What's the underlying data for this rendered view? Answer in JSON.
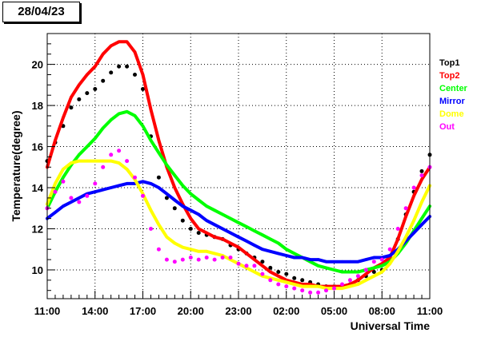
{
  "header": {
    "date": "28/04/23"
  },
  "chart_data": {
    "type": "scatter",
    "xlabel": "Universal Time",
    "ylabel": "Temperature(degree)",
    "xlim": [
      0,
      24
    ],
    "ylim": [
      8.6,
      21.5
    ],
    "x_ticks": [
      {
        "x": 0,
        "label": "11:00"
      },
      {
        "x": 3,
        "label": "14:00"
      },
      {
        "x": 6,
        "label": "17:00"
      },
      {
        "x": 9,
        "label": "20:00"
      },
      {
        "x": 12,
        "label": "23:00"
      },
      {
        "x": 15,
        "label": "02:00"
      },
      {
        "x": 18,
        "label": "05:00"
      },
      {
        "x": 21,
        "label": "08:00"
      },
      {
        "x": 24,
        "label": "11:00"
      }
    ],
    "y_ticks": [
      {
        "y": 10,
        "label": "10"
      },
      {
        "y": 12,
        "label": "12"
      },
      {
        "y": 14,
        "label": "14"
      },
      {
        "y": 16,
        "label": "16"
      },
      {
        "y": 18,
        "label": "18"
      },
      {
        "y": 20,
        "label": "20"
      }
    ],
    "grid": true,
    "legend_position": "right",
    "series": [
      {
        "name": "Top1",
        "color": "#000000",
        "marker": "dot",
        "x": [
          0,
          0.5,
          1,
          1.5,
          2,
          2.5,
          3,
          3.5,
          4,
          4.5,
          5,
          5.5,
          6,
          6.5,
          7,
          7.5,
          8,
          8.5,
          9,
          9.5,
          10,
          10.5,
          11,
          11.5,
          12,
          12.5,
          13,
          13.5,
          14,
          14.5,
          15,
          15.5,
          16,
          16.5,
          17,
          17.5,
          18,
          18.5,
          19,
          19.5,
          20,
          20.5,
          21,
          21.5,
          22,
          22.5,
          23,
          23.5,
          24
        ],
        "y": [
          15.3,
          16.2,
          17.0,
          17.9,
          18.3,
          18.6,
          18.8,
          19.2,
          19.6,
          19.9,
          19.9,
          19.5,
          18.8,
          16.5,
          14.5,
          13.5,
          13.0,
          12.4,
          12.0,
          11.8,
          11.7,
          11.6,
          11.5,
          11.2,
          11.0,
          10.8,
          10.6,
          10.4,
          10.1,
          9.9,
          9.8,
          9.6,
          9.5,
          9.4,
          9.3,
          9.2,
          9.2,
          9.2,
          9.3,
          9.5,
          9.7,
          9.9,
          10.0,
          10.5,
          11.5,
          12.7,
          13.8,
          14.8,
          15.6
        ]
      },
      {
        "name": "Top2",
        "color": "#ff0000",
        "marker": "line",
        "x": [
          0,
          0.5,
          1,
          1.5,
          2,
          2.5,
          3,
          3.5,
          4,
          4.5,
          5,
          5.5,
          6,
          6.5,
          7,
          7.5,
          8,
          8.5,
          9,
          9.5,
          10,
          10.5,
          11,
          11.5,
          12,
          12.5,
          13,
          13.5,
          14,
          14.5,
          15,
          15.5,
          16,
          16.5,
          17,
          17.5,
          18,
          18.5,
          19,
          19.5,
          20,
          20.5,
          21,
          21.5,
          22,
          22.5,
          23,
          23.5,
          24
        ],
        "y": [
          15.0,
          16.3,
          17.4,
          18.4,
          19.0,
          19.5,
          19.9,
          20.5,
          20.9,
          21.1,
          21.1,
          20.6,
          19.5,
          17.8,
          16.3,
          15.0,
          14.0,
          13.2,
          12.5,
          12.0,
          11.8,
          11.6,
          11.5,
          11.3,
          11.1,
          10.8,
          10.5,
          10.2,
          9.9,
          9.7,
          9.5,
          9.4,
          9.3,
          9.3,
          9.2,
          9.2,
          9.2,
          9.2,
          9.3,
          9.5,
          9.8,
          10.1,
          10.3,
          10.6,
          11.5,
          12.6,
          13.6,
          14.4,
          15.0
        ]
      },
      {
        "name": "Center",
        "color": "#00ff00",
        "marker": "line",
        "x": [
          0,
          0.5,
          1,
          1.5,
          2,
          2.5,
          3,
          3.5,
          4,
          4.5,
          5,
          5.5,
          6,
          6.5,
          7,
          7.5,
          8,
          8.5,
          9,
          9.5,
          10,
          10.5,
          11,
          11.5,
          12,
          12.5,
          13,
          13.5,
          14,
          14.5,
          15,
          15.5,
          16,
          16.5,
          17,
          17.5,
          18,
          18.5,
          19,
          19.5,
          20,
          20.5,
          21,
          21.5,
          22,
          22.5,
          23,
          23.5,
          24
        ],
        "y": [
          13.0,
          13.8,
          14.5,
          15.1,
          15.6,
          16.0,
          16.4,
          16.9,
          17.3,
          17.6,
          17.7,
          17.5,
          17.0,
          16.3,
          15.7,
          15.1,
          14.6,
          14.1,
          13.7,
          13.4,
          13.1,
          12.9,
          12.7,
          12.5,
          12.3,
          12.1,
          11.9,
          11.7,
          11.5,
          11.3,
          11.0,
          10.8,
          10.6,
          10.4,
          10.2,
          10.1,
          10.0,
          9.9,
          9.9,
          9.9,
          10.0,
          10.1,
          10.2,
          10.4,
          10.8,
          11.3,
          11.9,
          12.5,
          13.1
        ]
      },
      {
        "name": "Mirror",
        "color": "#0000ff",
        "marker": "line",
        "x": [
          0,
          0.5,
          1,
          1.5,
          2,
          2.5,
          3,
          3.5,
          4,
          4.5,
          5,
          5.5,
          6,
          6.5,
          7,
          7.5,
          8,
          8.5,
          9,
          9.5,
          10,
          10.5,
          11,
          11.5,
          12,
          12.5,
          13,
          13.5,
          14,
          14.5,
          15,
          15.5,
          16,
          16.5,
          17,
          17.5,
          18,
          18.5,
          19,
          19.5,
          20,
          20.5,
          21,
          21.5,
          22,
          22.5,
          23,
          23.5,
          24
        ],
        "y": [
          12.5,
          12.8,
          13.1,
          13.3,
          13.5,
          13.7,
          13.8,
          13.9,
          14.0,
          14.1,
          14.2,
          14.2,
          14.3,
          14.2,
          14.0,
          13.7,
          13.4,
          13.1,
          12.9,
          12.7,
          12.4,
          12.2,
          12.0,
          11.8,
          11.6,
          11.4,
          11.2,
          11.0,
          10.9,
          10.8,
          10.7,
          10.6,
          10.6,
          10.5,
          10.5,
          10.4,
          10.4,
          10.4,
          10.4,
          10.4,
          10.5,
          10.6,
          10.6,
          10.7,
          11.0,
          11.4,
          11.8,
          12.2,
          12.6
        ]
      },
      {
        "name": "Dome",
        "color": "#ffff00",
        "marker": "line",
        "x": [
          0,
          0.5,
          1,
          1.5,
          2,
          2.5,
          3,
          3.5,
          4,
          4.5,
          5,
          5.5,
          6,
          6.5,
          7,
          7.5,
          8,
          8.5,
          9,
          9.5,
          10,
          10.5,
          11,
          11.5,
          12,
          12.5,
          13,
          13.5,
          14,
          14.5,
          15,
          15.5,
          16,
          16.5,
          17,
          17.5,
          18,
          18.5,
          19,
          19.5,
          20,
          20.5,
          21,
          21.5,
          22,
          22.5,
          23,
          23.5,
          24
        ],
        "y": [
          13.2,
          14.2,
          14.9,
          15.2,
          15.3,
          15.3,
          15.3,
          15.3,
          15.3,
          15.2,
          14.9,
          14.4,
          13.7,
          12.9,
          12.2,
          11.6,
          11.3,
          11.1,
          11.0,
          10.9,
          10.9,
          10.8,
          10.7,
          10.5,
          10.3,
          10.1,
          9.9,
          9.7,
          9.6,
          9.5,
          9.4,
          9.3,
          9.2,
          9.2,
          9.2,
          9.1,
          9.1,
          9.1,
          9.2,
          9.3,
          9.5,
          9.7,
          9.9,
          10.3,
          10.9,
          11.6,
          12.4,
          13.3,
          14.1
        ]
      },
      {
        "name": "Out",
        "color": "#ff00ff",
        "marker": "dot",
        "x": [
          0,
          0.5,
          1,
          1.5,
          2,
          2.5,
          3,
          3.5,
          4,
          4.5,
          5,
          5.5,
          6,
          6.5,
          7,
          7.5,
          8,
          8.5,
          9,
          9.5,
          10,
          10.5,
          11,
          11.5,
          12,
          12.5,
          13,
          13.5,
          14,
          14.5,
          15,
          15.5,
          16,
          16.5,
          17,
          17.5,
          18,
          18.5,
          19,
          19.5,
          20,
          20.5,
          21,
          21.5,
          22,
          22.5,
          23,
          23.5,
          24
        ],
        "y": [
          13.0,
          13.8,
          14.3,
          13.5,
          13.3,
          13.6,
          14.2,
          15.0,
          15.6,
          15.8,
          15.3,
          14.5,
          13.6,
          12.0,
          11.0,
          10.5,
          10.4,
          10.5,
          10.6,
          10.5,
          10.6,
          10.5,
          10.6,
          10.6,
          10.3,
          10.2,
          10.2,
          9.8,
          9.5,
          9.3,
          9.2,
          9.1,
          9.0,
          8.9,
          8.9,
          9.0,
          9.1,
          9.3,
          9.5,
          9.7,
          10.0,
          10.4,
          10.5,
          11.0,
          12.0,
          13.0,
          14.0,
          14.6,
          15.0
        ]
      }
    ]
  }
}
